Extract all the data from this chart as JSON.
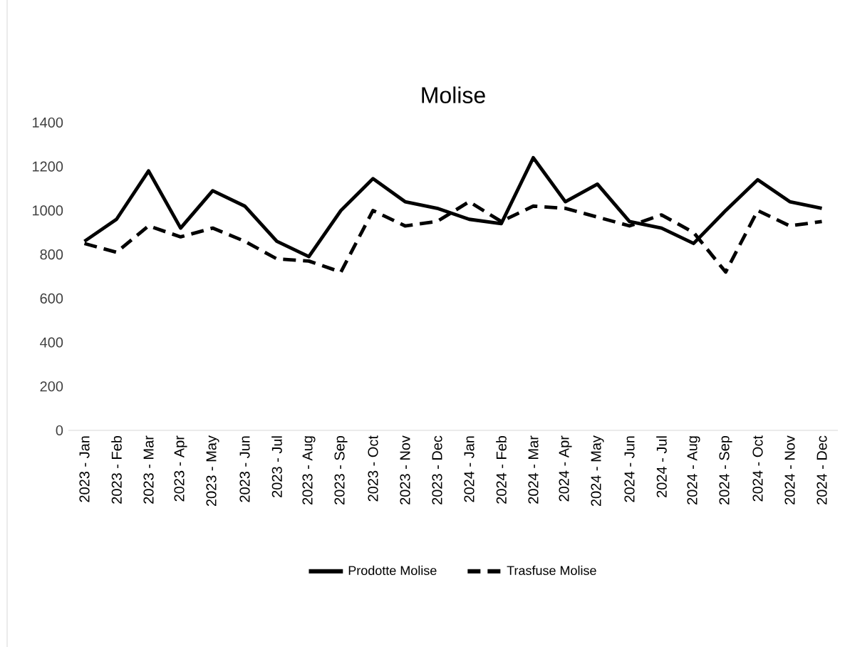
{
  "chart_data": {
    "type": "line",
    "title": "Molise",
    "categories": [
      "2023 - Jan",
      "2023 - Feb",
      "2023 - Mar",
      "2023 - Apr",
      "2023 - May",
      "2023 - Jun",
      "2023 - Jul",
      "2023 - Aug",
      "2023 - Sep",
      "2023 - Oct",
      "2023 - Nov",
      "2023 - Dec",
      "2024 - Jan",
      "2024 - Feb",
      "2024 - Mar",
      "2024 - Apr",
      "2024 - May",
      "2024 - Jun",
      "2024 - Jul",
      "2024 - Aug",
      "2024 - Sep",
      "2024 - Oct",
      "2024 - Nov",
      "2024 - Dec"
    ],
    "series": [
      {
        "name": "Prodotte Molise",
        "color": "#000000",
        "line_style": "solid",
        "values": [
          860,
          960,
          1180,
          920,
          1090,
          1020,
          860,
          790,
          1000,
          1145,
          1040,
          1010,
          960,
          940,
          1240,
          1040,
          1120,
          950,
          920,
          850,
          1000,
          1140,
          1040,
          1010
        ]
      },
      {
        "name": "Trasfuse  Molise",
        "color": "#000000",
        "line_style": "dashed",
        "values": [
          850,
          810,
          930,
          880,
          920,
          860,
          780,
          770,
          720,
          1000,
          930,
          950,
          1040,
          950,
          1020,
          1010,
          970,
          930,
          980,
          900,
          720,
          1000,
          930,
          950
        ]
      }
    ],
    "ylim": [
      0,
      1400
    ],
    "yticks": [
      0,
      200,
      400,
      600,
      800,
      1000,
      1200,
      1400
    ],
    "grid": false,
    "legend": "bottom",
    "marker": "none"
  }
}
